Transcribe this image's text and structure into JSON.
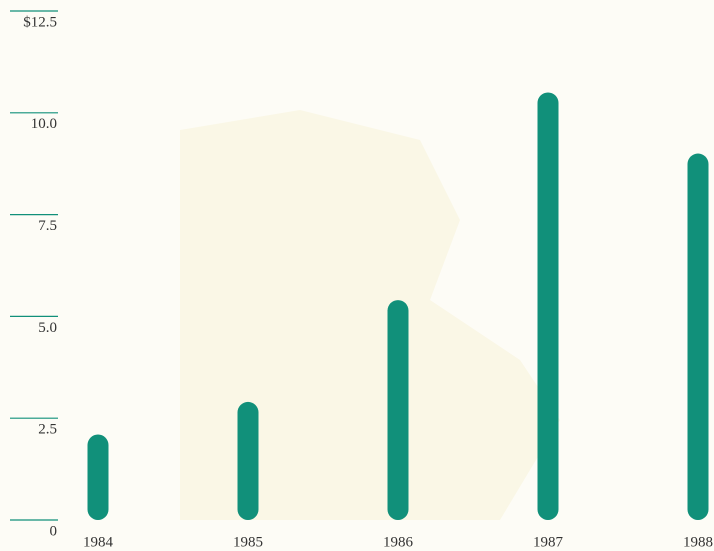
{
  "chart_data": {
    "type": "bar",
    "categories": [
      "1984",
      "1985",
      "1986",
      "1987",
      "1988"
    ],
    "values": [
      2.1,
      2.9,
      5.4,
      10.5,
      9.0
    ],
    "color": "#11907a",
    "ylim": [
      0,
      12.5
    ],
    "yticks": [
      0,
      2.5,
      {
        "value": 5,
        "label": "5.0"
      },
      7.5,
      {
        "value": 10,
        "label": "10.0"
      },
      {
        "value": 12.5,
        "label": "$12.5"
      }
    ]
  }
}
